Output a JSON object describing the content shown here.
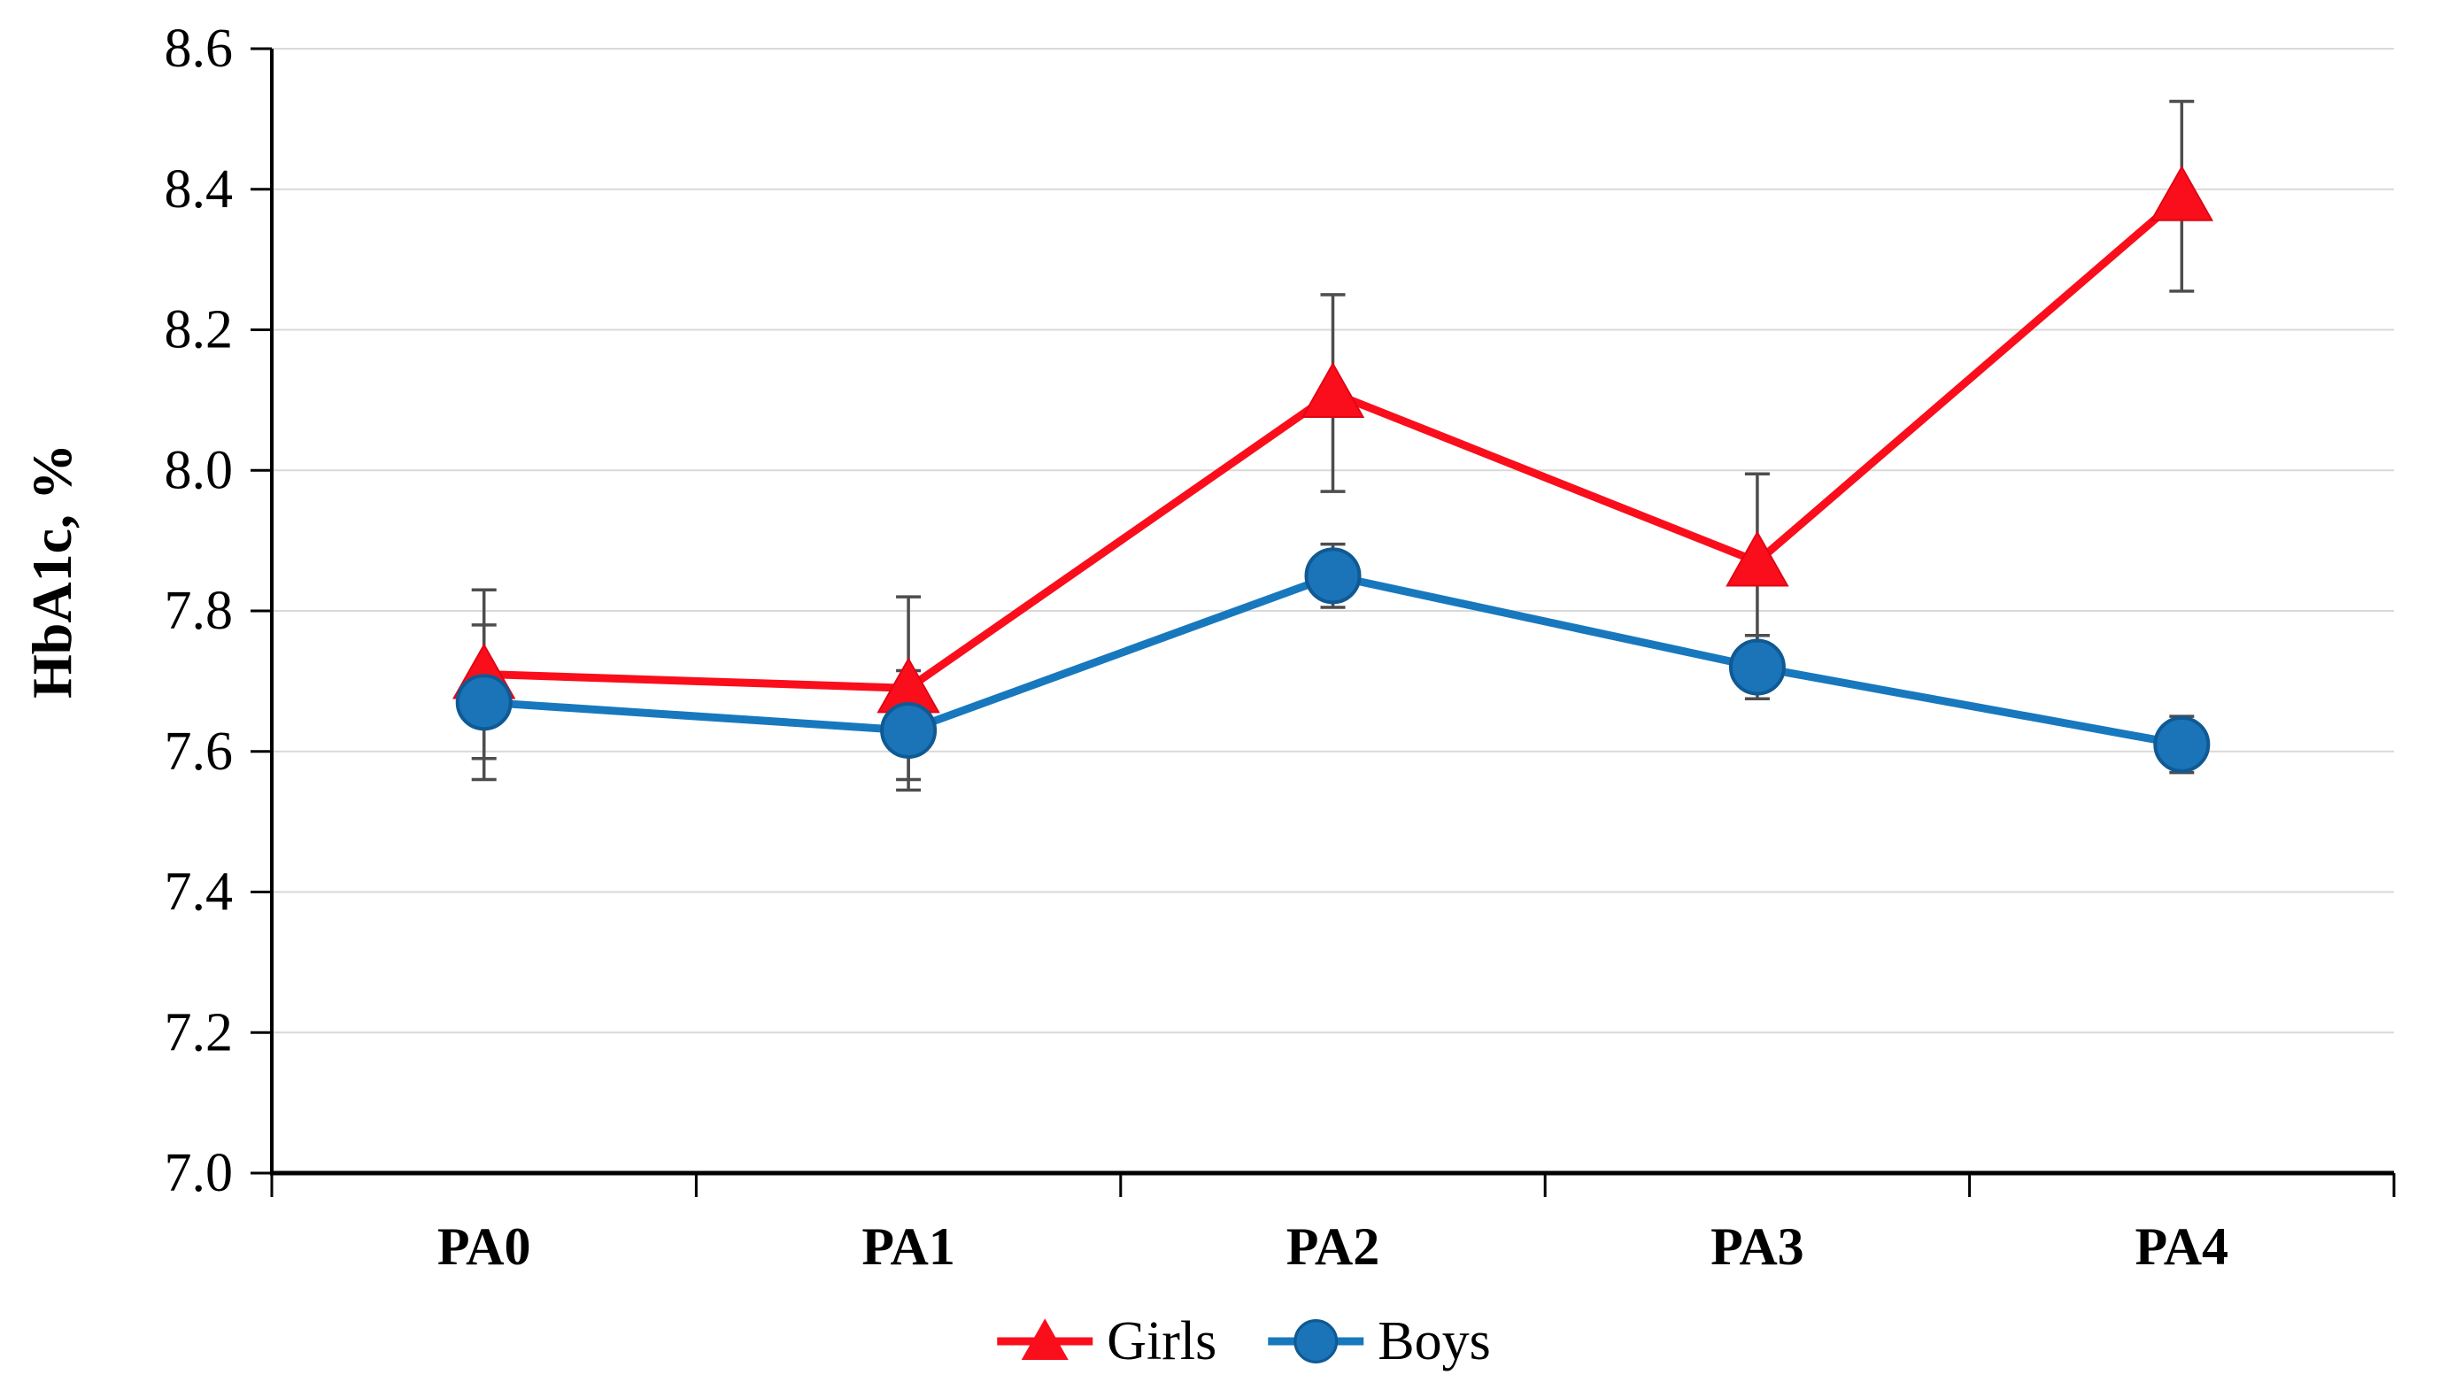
{
  "chart_data": {
    "type": "line",
    "title": "",
    "xlabel": "",
    "ylabel": "HbA1c, %",
    "categories": [
      "PA0",
      "PA1",
      "PA2",
      "PA3",
      "PA4"
    ],
    "series": [
      {
        "name": "Girls",
        "marker": "triangle",
        "line_color": "#FA0E1C",
        "marker_fill": "#FA0E1C",
        "marker_edge": "#E00614",
        "values": [
          7.71,
          7.69,
          8.11,
          7.87,
          8.39
        ],
        "errors": [
          0.12,
          0.13,
          0.14,
          0.125,
          0.135
        ]
      },
      {
        "name": "Boys",
        "marker": "circle",
        "line_color": "#1878BE",
        "marker_fill": "#1B74B8",
        "marker_edge": "#0F5A94",
        "values": [
          7.67,
          7.63,
          7.85,
          7.72,
          7.61
        ],
        "errors": [
          0.11,
          0.085,
          0.045,
          0.045,
          0.04
        ]
      }
    ],
    "ylim": [
      7.0,
      8.6
    ],
    "ytick_step": 0.2,
    "ytick_labels": [
      "7.0",
      "7.2",
      "7.4",
      "7.6",
      "7.8",
      "8.0",
      "8.2",
      "8.4",
      "8.6"
    ],
    "grid": true,
    "gridlines_at": [
      7.2,
      7.4,
      7.6,
      7.8,
      8.0,
      8.2,
      8.4,
      8.6
    ],
    "legend_position": "bottom",
    "legend_entries": [
      "Girls",
      "Boys"
    ],
    "colors": {
      "grid": "#D9D9D9",
      "axis": "#000000",
      "error_bar": "#4D4D4D",
      "background": "#FFFFFF",
      "text": "#000000"
    }
  }
}
